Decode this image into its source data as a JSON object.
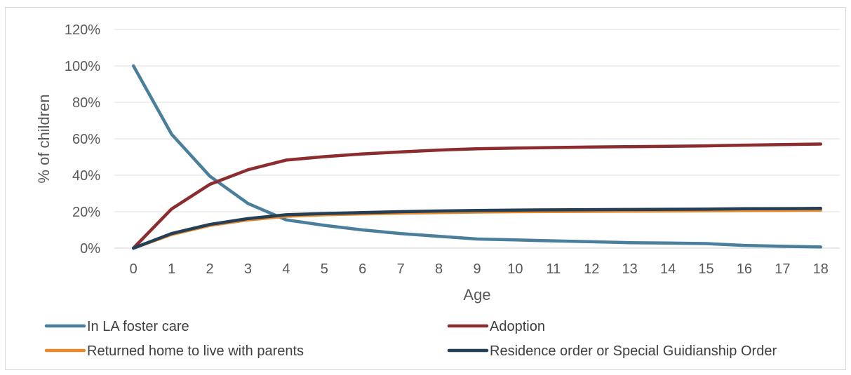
{
  "chart_data": {
    "type": "line",
    "xlabel": "Age",
    "ylabel": "% of children",
    "x": [
      0,
      1,
      2,
      3,
      4,
      5,
      6,
      7,
      8,
      9,
      10,
      11,
      12,
      13,
      14,
      15,
      16,
      17,
      18
    ],
    "ylim": [
      0,
      120
    ],
    "yticks": [
      0,
      20,
      40,
      60,
      80,
      100,
      120
    ],
    "ytick_labels": [
      "0%",
      "20%",
      "40%",
      "60%",
      "80%",
      "100%",
      "120%"
    ],
    "grid": true,
    "legend_position": "bottom",
    "series": [
      {
        "name": "In LA foster care",
        "color": "#4a7f9c",
        "values": [
          100,
          62.5,
          39.5,
          24.5,
          15.5,
          12.5,
          10,
          8,
          6.5,
          5,
          4.5,
          4,
          3.5,
          3,
          2.8,
          2.5,
          1.5,
          1,
          0.6
        ]
      },
      {
        "name": "Adoption",
        "color": "#8b2c2f",
        "values": [
          0,
          21.5,
          35,
          43,
          48.3,
          50.2,
          51.7,
          52.8,
          53.8,
          54.5,
          54.9,
          55.2,
          55.5,
          55.7,
          55.9,
          56.1,
          56.5,
          56.8,
          57.1
        ]
      },
      {
        "name": "Returned home to live with parents",
        "color": "#e8892b",
        "values": [
          0,
          7.5,
          12.5,
          15.5,
          17.5,
          18.3,
          18.8,
          19.2,
          19.5,
          19.8,
          20,
          20.1,
          20.2,
          20.3,
          20.4,
          20.5,
          20.6,
          20.7,
          20.8
        ]
      },
      {
        "name": "Residence order or Special Guidianship Order",
        "color": "#243f56",
        "values": [
          0,
          8,
          13,
          16.2,
          18.3,
          19,
          19.5,
          20,
          20.4,
          20.7,
          20.9,
          21,
          21.1,
          21.2,
          21.3,
          21.4,
          21.6,
          21.7,
          21.8
        ]
      }
    ]
  }
}
